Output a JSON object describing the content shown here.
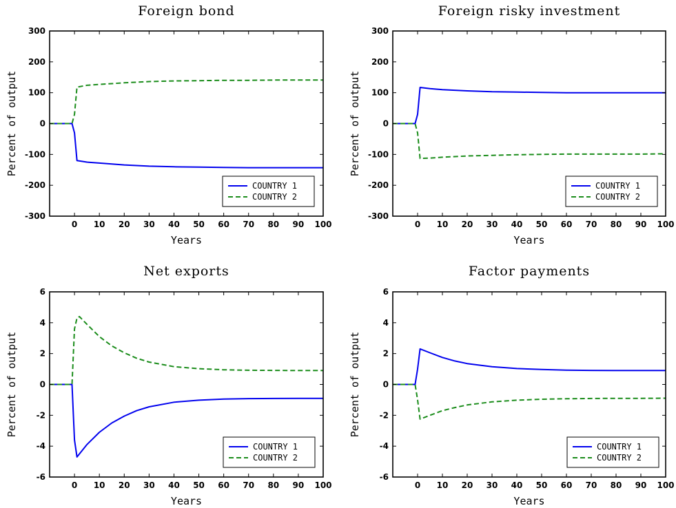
{
  "chart_data": [
    {
      "type": "line",
      "title": "Foreign bond",
      "xlabel": "Years",
      "ylabel": "Percent of output",
      "xlim": [
        -10,
        100
      ],
      "ylim": [
        -300,
        300
      ],
      "xticks": [
        0,
        10,
        20,
        30,
        40,
        50,
        60,
        70,
        80,
        90,
        100
      ],
      "yticks": [
        -300,
        -200,
        -100,
        0,
        100,
        200,
        300
      ],
      "grid": false,
      "legend_position": "bottom-right",
      "series": [
        {
          "name": "COUNTRY 1",
          "color": "#0000ee",
          "dash": "solid",
          "points": [
            [
              -10,
              0
            ],
            [
              -1,
              0
            ],
            [
              0,
              -30
            ],
            [
              1,
              -120
            ],
            [
              5,
              -125
            ],
            [
              10,
              -128
            ],
            [
              20,
              -134
            ],
            [
              30,
              -138
            ],
            [
              40,
              -140
            ],
            [
              50,
              -141
            ],
            [
              60,
              -142
            ],
            [
              70,
              -143
            ],
            [
              80,
              -143
            ],
            [
              90,
              -143
            ],
            [
              100,
              -143
            ]
          ]
        },
        {
          "name": "COUNTRY 2",
          "color": "#1a8c1a",
          "dash": "dashed",
          "points": [
            [
              -10,
              0
            ],
            [
              -1,
              0
            ],
            [
              0,
              30
            ],
            [
              1,
              118
            ],
            [
              5,
              124
            ],
            [
              10,
              127
            ],
            [
              20,
              132
            ],
            [
              30,
              136
            ],
            [
              40,
              138
            ],
            [
              50,
              139
            ],
            [
              60,
              140
            ],
            [
              70,
              140
            ],
            [
              80,
              141
            ],
            [
              90,
              141
            ],
            [
              100,
              141
            ]
          ]
        }
      ]
    },
    {
      "type": "line",
      "title": "Foreign risky investment",
      "xlabel": "Years",
      "ylabel": "Percent of output",
      "xlim": [
        -10,
        100
      ],
      "ylim": [
        -300,
        300
      ],
      "xticks": [
        0,
        10,
        20,
        30,
        40,
        50,
        60,
        70,
        80,
        90,
        100
      ],
      "yticks": [
        -300,
        -200,
        -100,
        0,
        100,
        200,
        300
      ],
      "grid": false,
      "legend_position": "bottom-right",
      "series": [
        {
          "name": "COUNTRY 1",
          "color": "#0000ee",
          "dash": "solid",
          "points": [
            [
              -10,
              0
            ],
            [
              -1,
              0
            ],
            [
              0,
              30
            ],
            [
              1,
              117
            ],
            [
              5,
              113
            ],
            [
              10,
              110
            ],
            [
              20,
              106
            ],
            [
              30,
              103
            ],
            [
              40,
              102
            ],
            [
              50,
              101
            ],
            [
              60,
              100
            ],
            [
              70,
              100
            ],
            [
              80,
              100
            ],
            [
              90,
              100
            ],
            [
              100,
              100
            ]
          ]
        },
        {
          "name": "COUNTRY 2",
          "color": "#1a8c1a",
          "dash": "dashed",
          "points": [
            [
              -10,
              0
            ],
            [
              -1,
              0
            ],
            [
              0,
              -30
            ],
            [
              1,
              -113
            ],
            [
              5,
              -112
            ],
            [
              10,
              -109
            ],
            [
              20,
              -105
            ],
            [
              30,
              -103
            ],
            [
              40,
              -101
            ],
            [
              50,
              -100
            ],
            [
              60,
              -99
            ],
            [
              70,
              -99
            ],
            [
              80,
              -99
            ],
            [
              90,
              -99
            ],
            [
              100,
              -98
            ]
          ]
        }
      ]
    },
    {
      "type": "line",
      "title": "Net exports",
      "xlabel": "Years",
      "ylabel": "Percent of output",
      "xlim": [
        -10,
        100
      ],
      "ylim": [
        -6,
        6
      ],
      "xticks": [
        0,
        10,
        20,
        30,
        40,
        50,
        60,
        70,
        80,
        90,
        100
      ],
      "yticks": [
        -6,
        -4,
        -2,
        0,
        2,
        4,
        6
      ],
      "grid": false,
      "legend_position": "bottom-right",
      "series": [
        {
          "name": "COUNTRY 1",
          "color": "#0000ee",
          "dash": "solid",
          "points": [
            [
              -10,
              0
            ],
            [
              -1,
              0
            ],
            [
              0,
              -3.6
            ],
            [
              1,
              -4.7
            ],
            [
              3,
              -4.3
            ],
            [
              5,
              -3.9
            ],
            [
              10,
              -3.1
            ],
            [
              15,
              -2.5
            ],
            [
              20,
              -2.05
            ],
            [
              25,
              -1.7
            ],
            [
              30,
              -1.45
            ],
            [
              40,
              -1.15
            ],
            [
              50,
              -1.02
            ],
            [
              60,
              -0.95
            ],
            [
              70,
              -0.92
            ],
            [
              80,
              -0.91
            ],
            [
              90,
              -0.9
            ],
            [
              100,
              -0.9
            ]
          ]
        },
        {
          "name": "COUNTRY 2",
          "color": "#1a8c1a",
          "dash": "dashed",
          "points": [
            [
              -10,
              0
            ],
            [
              -1,
              0
            ],
            [
              0,
              3.6
            ],
            [
              1,
              4.3
            ],
            [
              2,
              4.4
            ],
            [
              5,
              3.9
            ],
            [
              10,
              3.1
            ],
            [
              15,
              2.5
            ],
            [
              20,
              2.05
            ],
            [
              25,
              1.7
            ],
            [
              30,
              1.45
            ],
            [
              40,
              1.15
            ],
            [
              50,
              1.02
            ],
            [
              60,
              0.95
            ],
            [
              70,
              0.92
            ],
            [
              80,
              0.91
            ],
            [
              90,
              0.9
            ],
            [
              100,
              0.9
            ]
          ]
        }
      ]
    },
    {
      "type": "line",
      "title": "Factor payments",
      "xlabel": "Years",
      "ylabel": "Percent of output",
      "xlim": [
        -10,
        100
      ],
      "ylim": [
        -6,
        6
      ],
      "xticks": [
        0,
        10,
        20,
        30,
        40,
        50,
        60,
        70,
        80,
        90,
        100
      ],
      "yticks": [
        -6,
        -4,
        -2,
        0,
        2,
        4,
        6
      ],
      "grid": false,
      "legend_position": "bottom-right",
      "series": [
        {
          "name": "COUNTRY 1",
          "color": "#0000ee",
          "dash": "solid",
          "points": [
            [
              -10,
              0
            ],
            [
              -1,
              0
            ],
            [
              0,
              1.0
            ],
            [
              1,
              2.3
            ],
            [
              5,
              2.05
            ],
            [
              10,
              1.75
            ],
            [
              15,
              1.52
            ],
            [
              20,
              1.35
            ],
            [
              30,
              1.15
            ],
            [
              40,
              1.03
            ],
            [
              50,
              0.97
            ],
            [
              60,
              0.93
            ],
            [
              70,
              0.91
            ],
            [
              80,
              0.9
            ],
            [
              90,
              0.9
            ],
            [
              100,
              0.9
            ]
          ]
        },
        {
          "name": "COUNTRY 2",
          "color": "#1a8c1a",
          "dash": "dashed",
          "points": [
            [
              -10,
              0
            ],
            [
              -1,
              0
            ],
            [
              0,
              -1.0
            ],
            [
              1,
              -2.25
            ],
            [
              5,
              -2.0
            ],
            [
              10,
              -1.7
            ],
            [
              15,
              -1.5
            ],
            [
              20,
              -1.33
            ],
            [
              30,
              -1.13
            ],
            [
              40,
              -1.02
            ],
            [
              50,
              -0.96
            ],
            [
              60,
              -0.93
            ],
            [
              70,
              -0.91
            ],
            [
              80,
              -0.9
            ],
            [
              90,
              -0.9
            ],
            [
              100,
              -0.89
            ]
          ]
        }
      ]
    }
  ]
}
